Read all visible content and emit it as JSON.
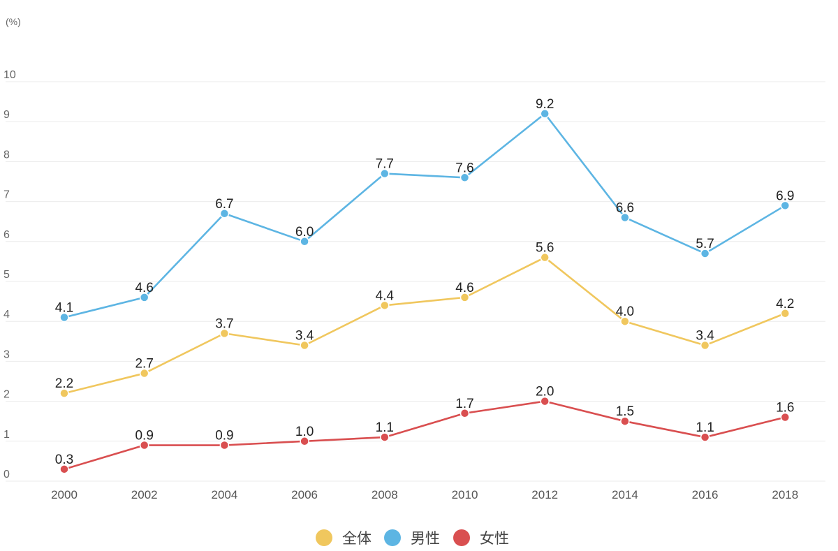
{
  "chart_data": {
    "type": "line",
    "title": "",
    "xlabel": "",
    "ylabel": "(%)",
    "unit_label": "(%)",
    "ylim": [
      0,
      10
    ],
    "yticks": [
      "0",
      "1",
      "2",
      "3",
      "4",
      "5",
      "6",
      "7",
      "8",
      "9",
      "10"
    ],
    "grid": true,
    "legend_position": "bottom-center",
    "categories": [
      "2000",
      "2002",
      "2004",
      "2006",
      "2008",
      "2010",
      "2012",
      "2014",
      "2016",
      "2018"
    ],
    "series": [
      {
        "name": "全体",
        "color": "#f0c75e",
        "values": [
          2.2,
          2.7,
          3.7,
          3.4,
          4.4,
          4.6,
          5.6,
          4.0,
          3.4,
          4.2
        ]
      },
      {
        "name": "男性",
        "color": "#5db5e3",
        "values": [
          4.1,
          4.6,
          6.7,
          6.0,
          7.7,
          7.6,
          9.2,
          6.6,
          5.7,
          6.9
        ]
      },
      {
        "name": "女性",
        "color": "#d94f50",
        "values": [
          0.3,
          0.9,
          0.9,
          1.0,
          1.1,
          1.7,
          2.0,
          1.5,
          1.1,
          1.6
        ]
      }
    ]
  }
}
